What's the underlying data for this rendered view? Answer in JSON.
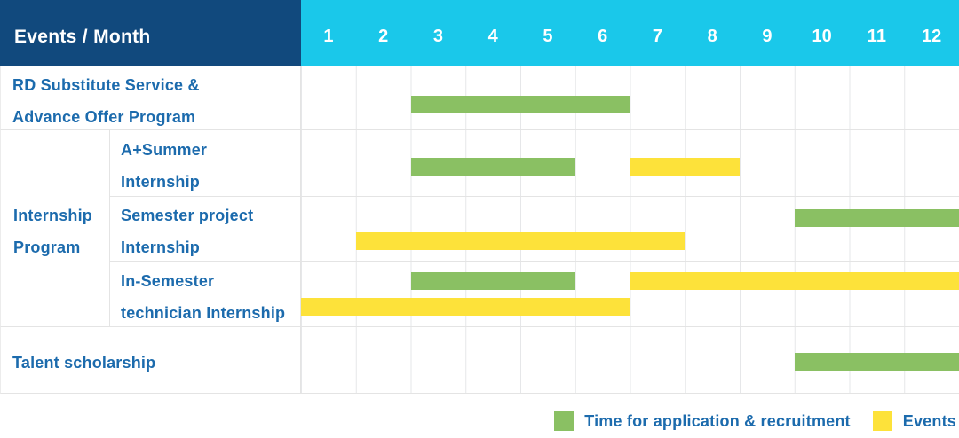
{
  "colors": {
    "navy": "#11497D",
    "cyan": "#1AC8EA",
    "green": "#8AC063",
    "yellow": "#FDE23A",
    "label_blue": "#1C6BAD",
    "grid_line": "#E4E4E4"
  },
  "table": {
    "header": {
      "label": "Events / Month",
      "months": [
        "1",
        "2",
        "3",
        "4",
        "5",
        "6",
        "7",
        "8",
        "9",
        "10",
        "11",
        "12"
      ]
    },
    "group_label_lines": [
      "Internship",
      "Program"
    ],
    "rows": [
      {
        "id": "rd-substitute",
        "label_lines": [
          "RD Substitute Service &",
          "Advance Offer Program"
        ],
        "bars": [
          {
            "type": "green",
            "lane": "single",
            "start": 3,
            "end": 6
          }
        ]
      },
      {
        "id": "aplus-summer",
        "label_lines": [
          "A+Summer",
          "Internship"
        ],
        "bars": [
          {
            "type": "green",
            "lane": "single",
            "start": 3,
            "end": 5
          },
          {
            "type": "yellow",
            "lane": "single",
            "start": 7,
            "end": 8
          }
        ]
      },
      {
        "id": "semester-project",
        "label_lines": [
          "Semester project",
          "Internship"
        ],
        "bars": [
          {
            "type": "green",
            "lane": "top",
            "start": 10,
            "end": 12
          },
          {
            "type": "yellow",
            "lane": "bottom",
            "start": 2,
            "end": 7
          }
        ]
      },
      {
        "id": "in-semester-technician",
        "label_lines": [
          "In-Semester",
          "technician Internship"
        ],
        "bars": [
          {
            "type": "green",
            "lane": "top",
            "start": 3,
            "end": 5
          },
          {
            "type": "yellow",
            "lane": "top",
            "start": 7,
            "end": 12
          },
          {
            "type": "yellow",
            "lane": "bottom",
            "start": 1,
            "end": 6
          }
        ]
      },
      {
        "id": "talent-scholarship",
        "label_lines": [
          "Talent scholarship"
        ],
        "bars": [
          {
            "type": "green",
            "lane": "single",
            "start": 10,
            "end": 12
          }
        ]
      }
    ]
  },
  "legend": [
    {
      "label": "Time for application & recruitment",
      "color": "#8AC063",
      "key": "green"
    },
    {
      "label": "Events",
      "color": "#FDE23A",
      "key": "yellow"
    }
  ],
  "chart_data": {
    "type": "bar",
    "subtype": "gantt-schedule",
    "title": "Events / Month",
    "xlabel": "Month",
    "x_ticks": [
      1,
      2,
      3,
      4,
      5,
      6,
      7,
      8,
      9,
      10,
      11,
      12
    ],
    "x_range": [
      1,
      12
    ],
    "grid": true,
    "legend_position": "bottom-right",
    "series_legend": [
      "Time for application & recruitment",
      "Events"
    ],
    "rows": [
      {
        "group": null,
        "name": "RD Substitute Service & Advance Offer Program",
        "bars": [
          {
            "series": "Time for application & recruitment",
            "start_month": 3,
            "end_month": 6
          }
        ]
      },
      {
        "group": "Internship Program",
        "name": "A+Summer Internship",
        "bars": [
          {
            "series": "Time for application & recruitment",
            "start_month": 3,
            "end_month": 5
          },
          {
            "series": "Events",
            "start_month": 7,
            "end_month": 8
          }
        ]
      },
      {
        "group": "Internship Program",
        "name": "Semester project Internship",
        "bars": [
          {
            "series": "Time for application & recruitment",
            "start_month": 10,
            "end_month": 12
          },
          {
            "series": "Events",
            "start_month": 2,
            "end_month": 7
          }
        ]
      },
      {
        "group": "Internship Program",
        "name": "In-Semester technician Internship",
        "bars": [
          {
            "series": "Time for application & recruitment",
            "start_month": 3,
            "end_month": 5
          },
          {
            "series": "Events",
            "start_month": 7,
            "end_month": 12
          },
          {
            "series": "Events",
            "start_month": 1,
            "end_month": 6
          }
        ]
      },
      {
        "group": null,
        "name": "Talent scholarship",
        "bars": [
          {
            "series": "Time for application & recruitment",
            "start_month": 10,
            "end_month": 12
          }
        ]
      }
    ]
  }
}
